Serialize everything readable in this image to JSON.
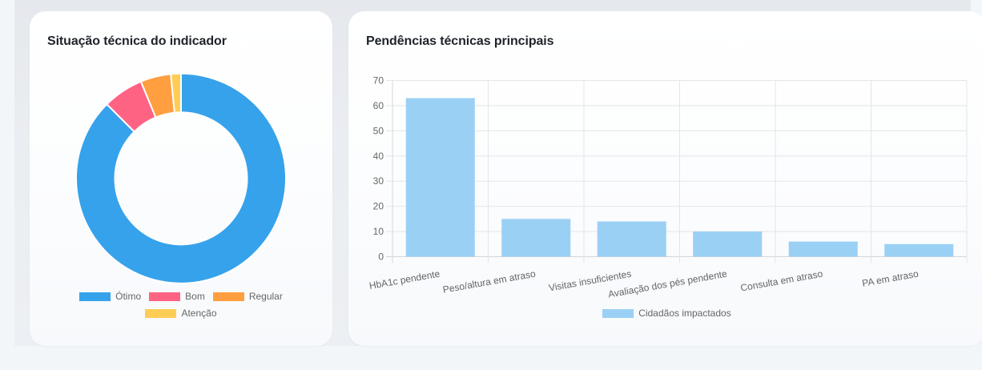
{
  "cards": {
    "status": {
      "title": "Situação técnica do indicador"
    },
    "pendencias": {
      "title": "Pendências técnicas principais"
    }
  },
  "colors": {
    "page_background": "#f3f6f9",
    "section_background": "#e9ecf0",
    "card_background": "#ffffff",
    "title_text": "#1f2329",
    "chart_text": "#666666",
    "grid": "#e3e5e8"
  },
  "chart_data": [
    {
      "type": "pie",
      "variant": "doughnut",
      "title": "Situação técnica do indicador",
      "labels": [
        "Ótimo",
        "Bom",
        "Regular",
        "Atenção"
      ],
      "values": [
        56,
        4,
        3,
        1
      ],
      "percent_estimate": [
        87.5,
        6.2,
        4.7,
        1.6
      ],
      "colors": [
        "#36a2eb",
        "#ff6384",
        "#ff9f40",
        "#ffcd56"
      ],
      "legend_position": "bottom"
    },
    {
      "type": "bar",
      "title": "Pendências técnicas principais",
      "categories": [
        "HbA1c pendente",
        "Peso/altura em atraso",
        "Visitas insuficientes",
        "Avaliação dos pés pendente",
        "Consulta em atraso",
        "PA em atraso"
      ],
      "series": [
        {
          "name": "Cidadãos impactados",
          "values": [
            63,
            15,
            14,
            10,
            6,
            5
          ],
          "color": "#9bd0f5"
        }
      ],
      "xlabel": "",
      "ylabel": "",
      "ylim": [
        0,
        70
      ],
      "y_ticks": [
        0,
        10,
        20,
        30,
        40,
        50,
        60,
        70
      ],
      "grid": true,
      "x_label_rotation_deg": -10,
      "legend_position": "bottom"
    }
  ]
}
